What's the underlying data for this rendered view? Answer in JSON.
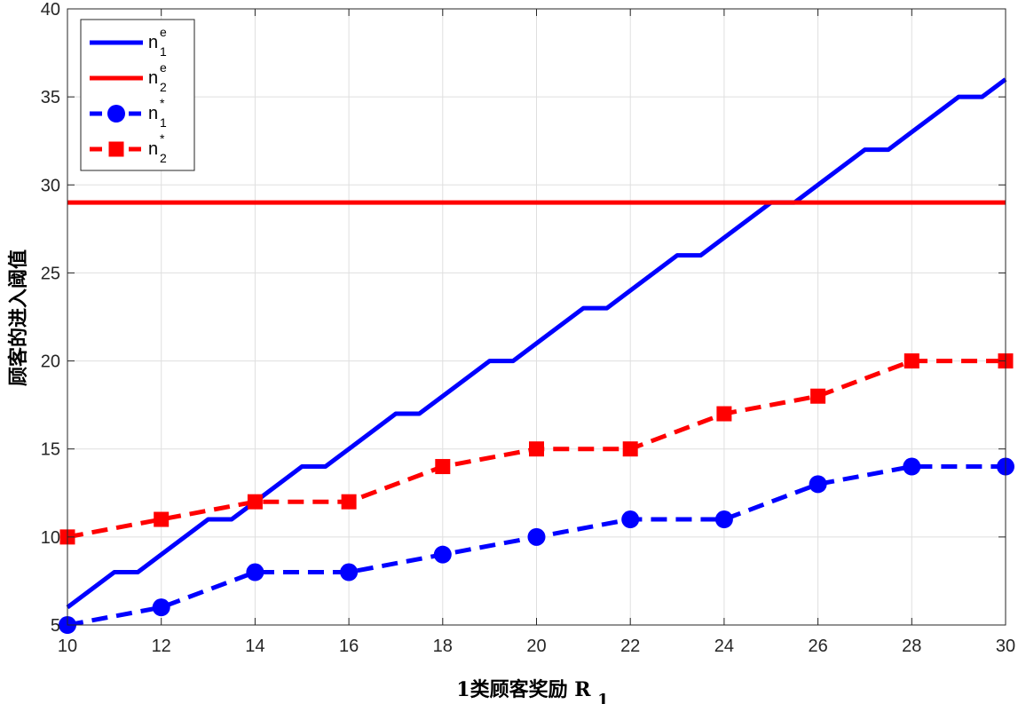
{
  "chart_data": {
    "type": "line",
    "title": "",
    "xlabel": "1类顾客奖励 R",
    "xlabel_sub": "1",
    "ylabel": "顾客的进入阈值",
    "xlim": [
      10,
      30
    ],
    "ylim": [
      5,
      40
    ],
    "xticks": [
      10,
      12,
      14,
      16,
      18,
      20,
      22,
      24,
      26,
      28,
      30
    ],
    "yticks": [
      5,
      10,
      15,
      20,
      25,
      30,
      35,
      40
    ],
    "grid": true,
    "legend_position": "top-left",
    "series": [
      {
        "name": "n",
        "name_sup": "e",
        "name_sub": "1",
        "color": "#0000ff",
        "style": "solid",
        "marker": "none",
        "x": [
          10,
          11,
          11.5,
          12,
          13,
          13.5,
          14,
          15,
          15.5,
          16,
          17,
          17.5,
          18,
          19,
          19.5,
          20,
          21,
          21.5,
          22,
          23,
          23.5,
          24,
          25,
          25.5,
          26,
          27,
          27.5,
          28,
          29,
          29.5,
          30
        ],
        "y": [
          6,
          8,
          8,
          9,
          11,
          11,
          12,
          14,
          14,
          15,
          17,
          17,
          18,
          20,
          20,
          21,
          23,
          23,
          24,
          26,
          26,
          27,
          29,
          29,
          30,
          32,
          32,
          33,
          35,
          35,
          36
        ]
      },
      {
        "name": "n",
        "name_sup": "e",
        "name_sub": "2",
        "color": "#ff0000",
        "style": "solid",
        "marker": "none",
        "x": [
          10,
          30
        ],
        "y": [
          29,
          29
        ]
      },
      {
        "name": "n",
        "name_sup": "*",
        "name_sub": "1",
        "color": "#0000ff",
        "style": "dashed",
        "marker": "circle",
        "x": [
          10,
          12,
          14,
          16,
          18,
          20,
          22,
          24,
          26,
          28,
          30
        ],
        "y": [
          5,
          6,
          8,
          8,
          9,
          10,
          11,
          11,
          13,
          14,
          14
        ]
      },
      {
        "name": "n",
        "name_sup": "*",
        "name_sub": "2",
        "color": "#ff0000",
        "style": "dashed",
        "marker": "square",
        "x": [
          10,
          12,
          14,
          16,
          18,
          20,
          22,
          24,
          26,
          28,
          30
        ],
        "y": [
          10,
          11,
          12,
          12,
          14,
          15,
          15,
          17,
          18,
          20,
          20
        ]
      }
    ]
  }
}
